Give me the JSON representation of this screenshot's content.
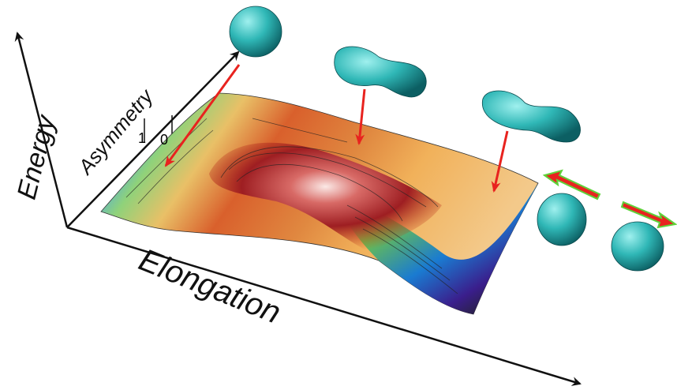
{
  "axes": {
    "energy": "Energy",
    "asymmetry": "Asymmetry",
    "elongation": "Elongation"
  },
  "asymmetry_ticks": [
    "1",
    "0"
  ]
}
